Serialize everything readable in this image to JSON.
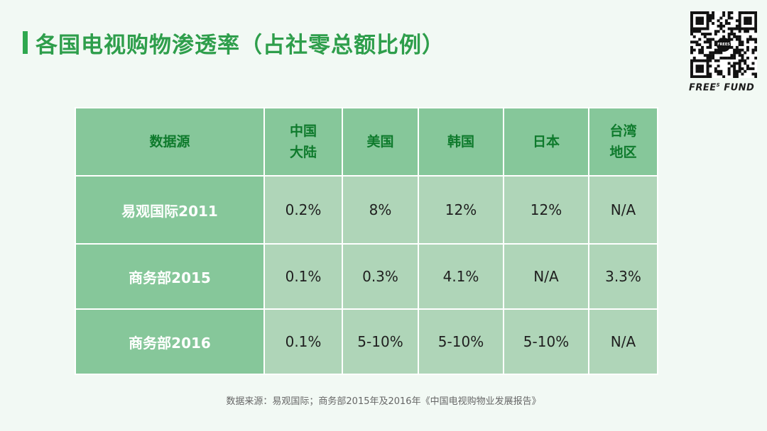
{
  "title": "各国电视购物渗透率（占社零总额比例）",
  "brand": {
    "name": "FREE",
    "superscript": "S",
    "suffix": "FUND",
    "qr_badge": "FREES"
  },
  "table": {
    "header": {
      "source_col": "数据源",
      "countries": [
        {
          "line1": "中国",
          "line2": "大陆"
        },
        {
          "line1": "美国",
          "line2": ""
        },
        {
          "line1": "韩国",
          "line2": ""
        },
        {
          "line1": "日本",
          "line2": ""
        },
        {
          "line1": "台湾",
          "line2": "地区"
        }
      ]
    },
    "rows": [
      {
        "source": "易观国际2011",
        "values": [
          "0.2%",
          "8%",
          "12%",
          "12%",
          "N/A"
        ]
      },
      {
        "source": "商务部2015",
        "values": [
          "0.1%",
          "0.3%",
          "4.1%",
          "N/A",
          "3.3%"
        ]
      },
      {
        "source": "商务部2016",
        "values": [
          "0.1%",
          "5-10%",
          "5-10%",
          "5-10%",
          "N/A"
        ]
      }
    ]
  },
  "footnote": "数据来源：易观国际；商务部2015年及2016年《中国电视购物业发展报告》",
  "colors": {
    "accent": "#2e9e4b",
    "header_bg": "#86c79a",
    "cell_bg": "#afd5b8",
    "page_bg": "#f2f9f4"
  }
}
